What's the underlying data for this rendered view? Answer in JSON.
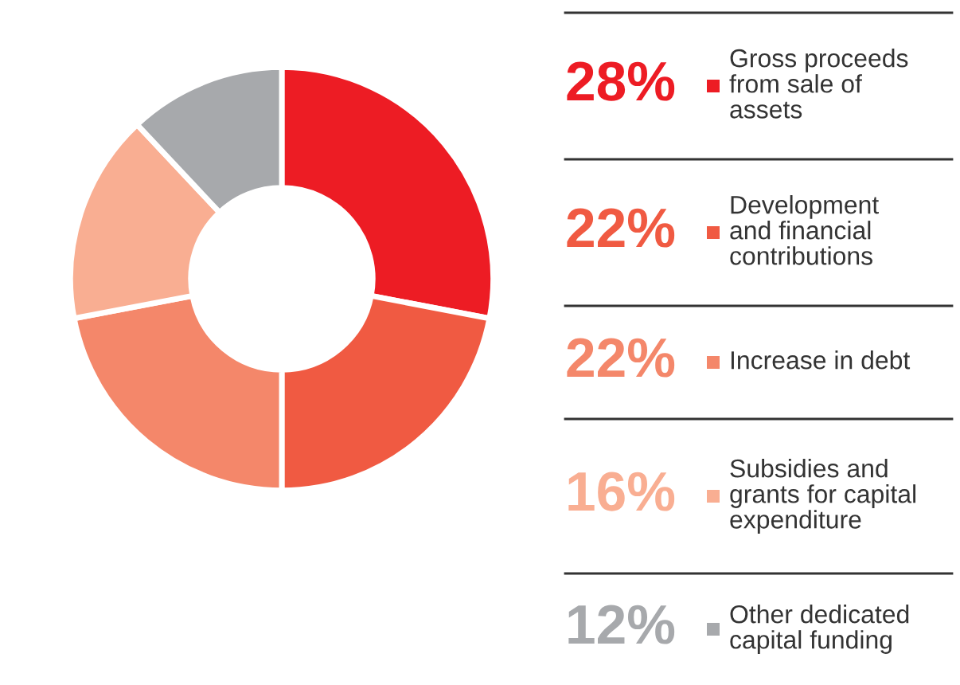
{
  "chart_data": {
    "type": "donut",
    "categories": [
      "Gross proceeds\nfrom sale of\nassets",
      "Development\nand financial\ncontributions",
      "Increase in debt",
      "Subsidies and\ngrants for capital\nexpenditure",
      "Other dedicated\ncapital funding"
    ],
    "values": [
      28,
      22,
      22,
      16,
      12
    ],
    "colors": [
      "#ed1c24",
      "#f05a42",
      "#f4876a",
      "#f9ae92",
      "#a7a9ac"
    ],
    "value_labels": [
      "28%",
      "22%",
      "22%",
      "16%",
      "12%"
    ],
    "legend": "right"
  }
}
